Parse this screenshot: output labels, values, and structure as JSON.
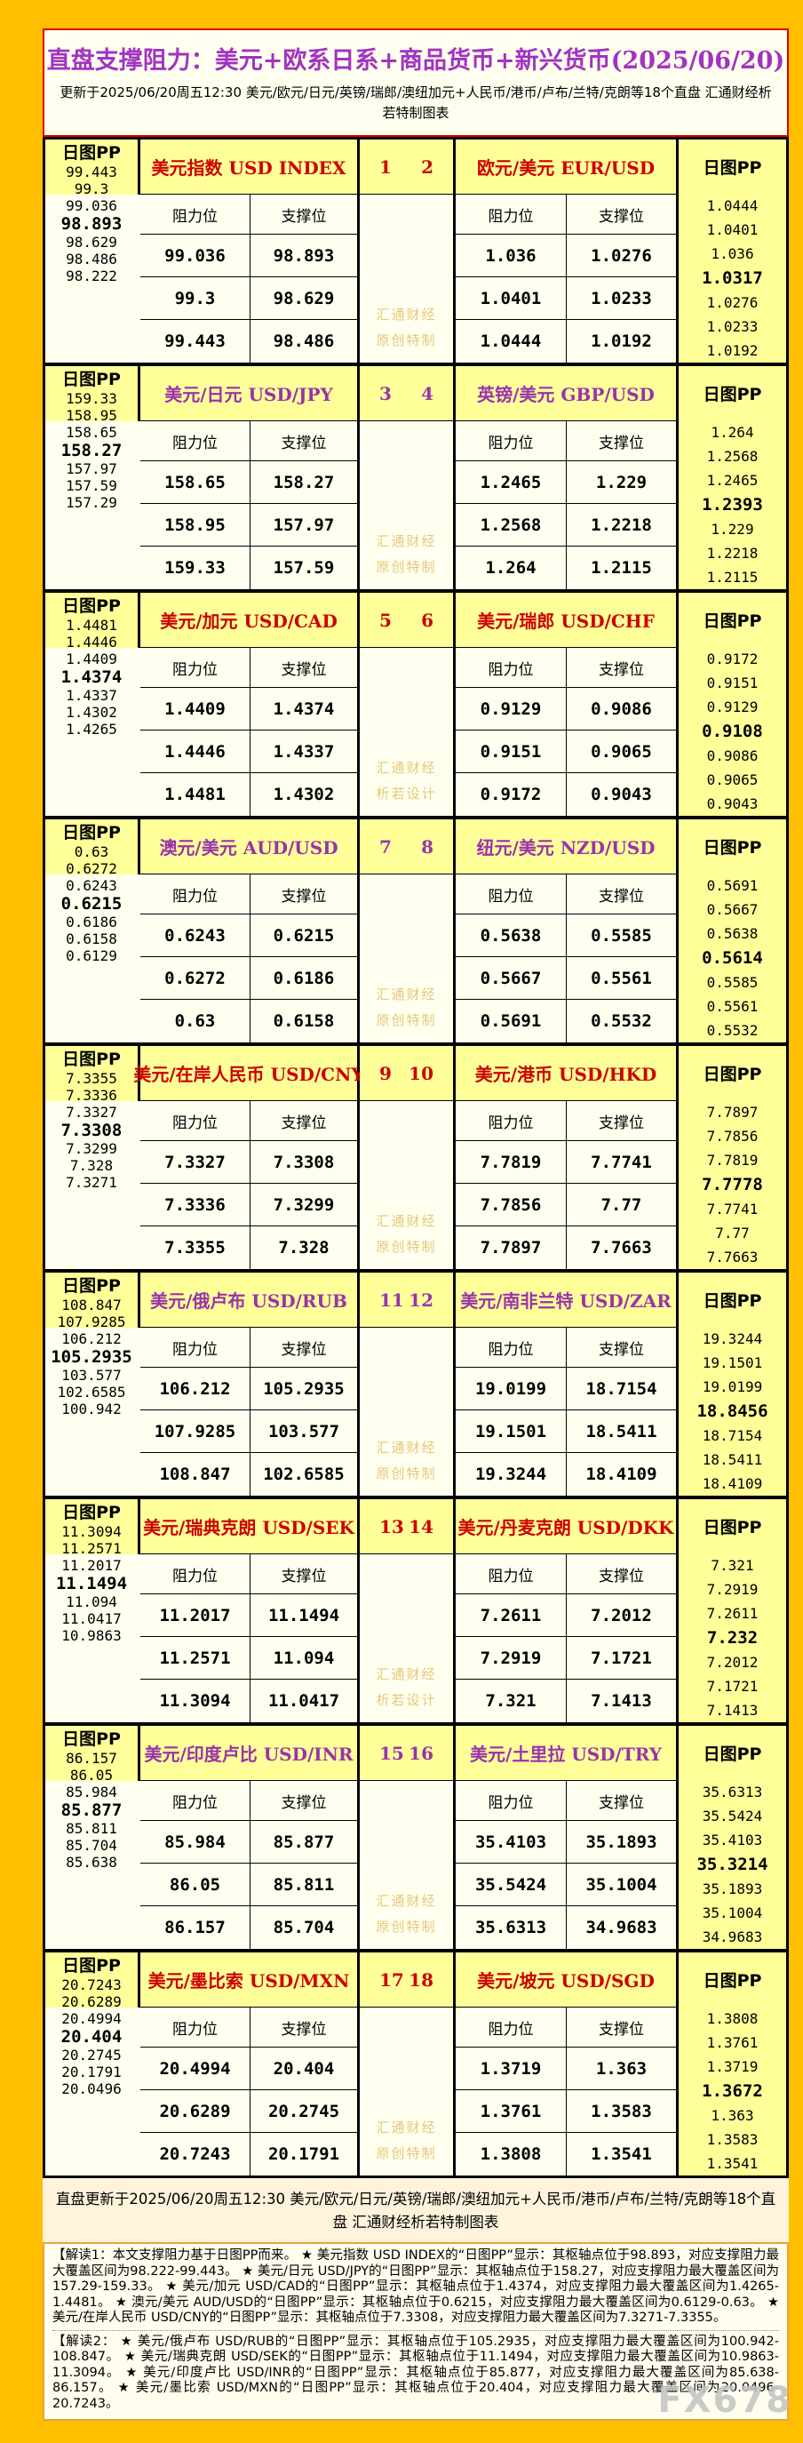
{
  "header": {
    "title": "直盘支撑阻力：美元+欧系日系+商品货币+新兴货币(2025/06/20)",
    "subtitle": "更新于2025/06/20周五12:30 美元/欧元/日元/英镑/瑞郎/澳纽加元+人民币/港币/卢布/兰特/克朗等18个直盘 汇通财经析若特制图表"
  },
  "labels": {
    "pp": "日图PP",
    "resistance": "阻力位",
    "support": "支撑位"
  },
  "colors": {
    "accent_red": "#CC0000",
    "accent_purple": "#9933AA",
    "title_purple": "#A233C2",
    "table_yellow": "#FFFF99",
    "cell_ivory": "#FFFFEF",
    "watermark_gold": "#E5C878",
    "title_border_red": "#E00000",
    "page_gold": "#FFBE00"
  },
  "watermarks": {
    "brand": "汇通财经",
    "fx": "FX678"
  },
  "blocks": [
    {
      "accent": "red",
      "num_left": "1",
      "num_right": "2",
      "wm1": "汇通财经",
      "wm2": "原创特制",
      "left": {
        "pair": "美元指数 USD INDEX",
        "pp": [
          "99.443",
          "99.3",
          "99.036",
          "98.893",
          "98.629",
          "98.486",
          "98.222"
        ],
        "rows": [
          [
            "99.036",
            "98.893"
          ],
          [
            "99.3",
            "98.629"
          ],
          [
            "99.443",
            "98.486"
          ]
        ]
      },
      "right": {
        "pair": "欧元/美元 EUR/USD",
        "pp": [
          "1.0444",
          "1.0401",
          "1.036",
          "1.0317",
          "1.0276",
          "1.0233",
          "1.0192"
        ],
        "rows": [
          [
            "1.036",
            "1.0276"
          ],
          [
            "1.0401",
            "1.0233"
          ],
          [
            "1.0444",
            "1.0192"
          ]
        ]
      }
    },
    {
      "accent": "purple",
      "num_left": "3",
      "num_right": "4",
      "wm1": "汇通财经",
      "wm2": "原创特制",
      "left": {
        "pair": "美元/日元 USD/JPY",
        "pp": [
          "159.33",
          "158.95",
          "158.65",
          "158.27",
          "157.97",
          "157.59",
          "157.29"
        ],
        "rows": [
          [
            "158.65",
            "158.27"
          ],
          [
            "158.95",
            "157.97"
          ],
          [
            "159.33",
            "157.59"
          ]
        ]
      },
      "right": {
        "pair": "英镑/美元 GBP/USD",
        "pp": [
          "1.264",
          "1.2568",
          "1.2465",
          "1.2393",
          "1.229",
          "1.2218",
          "1.2115"
        ],
        "rows": [
          [
            "1.2465",
            "1.229"
          ],
          [
            "1.2568",
            "1.2218"
          ],
          [
            "1.264",
            "1.2115"
          ]
        ]
      }
    },
    {
      "accent": "red",
      "num_left": "5",
      "num_right": "6",
      "wm1": "汇通财经",
      "wm2": "析若设计",
      "left": {
        "pair": "美元/加元 USD/CAD",
        "pp": [
          "1.4481",
          "1.4446",
          "1.4409",
          "1.4374",
          "1.4337",
          "1.4302",
          "1.4265"
        ],
        "rows": [
          [
            "1.4409",
            "1.4374"
          ],
          [
            "1.4446",
            "1.4337"
          ],
          [
            "1.4481",
            "1.4302"
          ]
        ]
      },
      "right": {
        "pair": "美元/瑞郎 USD/CHF",
        "pp": [
          "0.9172",
          "0.9151",
          "0.9129",
          "0.9108",
          "0.9086",
          "0.9065",
          "0.9043"
        ],
        "rows": [
          [
            "0.9129",
            "0.9086"
          ],
          [
            "0.9151",
            "0.9065"
          ],
          [
            "0.9172",
            "0.9043"
          ]
        ]
      }
    },
    {
      "accent": "purple",
      "num_left": "7",
      "num_right": "8",
      "wm1": "汇通财经",
      "wm2": "原创特制",
      "left": {
        "pair": "澳元/美元 AUD/USD",
        "pp": [
          "0.63",
          "0.6272",
          "0.6243",
          "0.6215",
          "0.6186",
          "0.6158",
          "0.6129"
        ],
        "rows": [
          [
            "0.6243",
            "0.6215"
          ],
          [
            "0.6272",
            "0.6186"
          ],
          [
            "0.63",
            "0.6158"
          ]
        ]
      },
      "right": {
        "pair": "纽元/美元 NZD/USD",
        "pp": [
          "0.5691",
          "0.5667",
          "0.5638",
          "0.5614",
          "0.5585",
          "0.5561",
          "0.5532"
        ],
        "rows": [
          [
            "0.5638",
            "0.5585"
          ],
          [
            "0.5667",
            "0.5561"
          ],
          [
            "0.5691",
            "0.5532"
          ]
        ]
      }
    },
    {
      "accent": "red",
      "num_left": "9",
      "num_right": "10",
      "wm1": "汇通财经",
      "wm2": "原创特制",
      "left": {
        "pair": "美元/在岸人民币 USD/CNY",
        "pp": [
          "7.3355",
          "7.3336",
          "7.3327",
          "7.3308",
          "7.3299",
          "7.328",
          "7.3271"
        ],
        "rows": [
          [
            "7.3327",
            "7.3308"
          ],
          [
            "7.3336",
            "7.3299"
          ],
          [
            "7.3355",
            "7.328"
          ]
        ]
      },
      "right": {
        "pair": "美元/港币 USD/HKD",
        "pp": [
          "7.7897",
          "7.7856",
          "7.7819",
          "7.7778",
          "7.7741",
          "7.77",
          "7.7663"
        ],
        "rows": [
          [
            "7.7819",
            "7.7741"
          ],
          [
            "7.7856",
            "7.77"
          ],
          [
            "7.7897",
            "7.7663"
          ]
        ]
      }
    },
    {
      "accent": "purple",
      "num_left": "11",
      "num_right": "12",
      "wm1": "汇通财经",
      "wm2": "原创特制",
      "left": {
        "pair": "美元/俄卢布 USD/RUB",
        "pp": [
          "108.847",
          "107.9285",
          "106.212",
          "105.2935",
          "103.577",
          "102.6585",
          "100.942"
        ],
        "rows": [
          [
            "106.212",
            "105.2935"
          ],
          [
            "107.9285",
            "103.577"
          ],
          [
            "108.847",
            "102.6585"
          ]
        ]
      },
      "right": {
        "pair": "美元/南非兰特 USD/ZAR",
        "pp": [
          "19.3244",
          "19.1501",
          "19.0199",
          "18.8456",
          "18.7154",
          "18.5411",
          "18.4109"
        ],
        "rows": [
          [
            "19.0199",
            "18.7154"
          ],
          [
            "19.1501",
            "18.5411"
          ],
          [
            "19.3244",
            "18.4109"
          ]
        ]
      }
    },
    {
      "accent": "red",
      "num_left": "13",
      "num_right": "14",
      "wm1": "汇通财经",
      "wm2": "析若设计",
      "left": {
        "pair": "美元/瑞典克朗 USD/SEK",
        "pp": [
          "11.3094",
          "11.2571",
          "11.2017",
          "11.1494",
          "11.094",
          "11.0417",
          "10.9863"
        ],
        "rows": [
          [
            "11.2017",
            "11.1494"
          ],
          [
            "11.2571",
            "11.094"
          ],
          [
            "11.3094",
            "11.0417"
          ]
        ]
      },
      "right": {
        "pair": "美元/丹麦克朗 USD/DKK",
        "pp": [
          "7.321",
          "7.2919",
          "7.2611",
          "7.232",
          "7.2012",
          "7.1721",
          "7.1413"
        ],
        "rows": [
          [
            "7.2611",
            "7.2012"
          ],
          [
            "7.2919",
            "7.1721"
          ],
          [
            "7.321",
            "7.1413"
          ]
        ]
      }
    },
    {
      "accent": "purple",
      "num_left": "15",
      "num_right": "16",
      "wm1": "汇通财经",
      "wm2": "原创特制",
      "left": {
        "pair": "美元/印度卢比 USD/INR",
        "pp": [
          "86.157",
          "86.05",
          "85.984",
          "85.877",
          "85.811",
          "85.704",
          "85.638"
        ],
        "rows": [
          [
            "85.984",
            "85.877"
          ],
          [
            "86.05",
            "85.811"
          ],
          [
            "86.157",
            "85.704"
          ]
        ]
      },
      "right": {
        "pair": "美元/土里拉 USD/TRY",
        "pp": [
          "35.6313",
          "35.5424",
          "35.4103",
          "35.3214",
          "35.1893",
          "35.1004",
          "34.9683"
        ],
        "rows": [
          [
            "35.4103",
            "35.1893"
          ],
          [
            "35.5424",
            "35.1004"
          ],
          [
            "35.6313",
            "34.9683"
          ]
        ]
      }
    },
    {
      "accent": "red",
      "num_left": "17",
      "num_right": "18",
      "wm1": "汇通财经",
      "wm2": "原创特制",
      "left": {
        "pair": "美元/墨比索 USD/MXN",
        "pp": [
          "20.7243",
          "20.6289",
          "20.4994",
          "20.404",
          "20.2745",
          "20.1791",
          "20.0496"
        ],
        "rows": [
          [
            "20.4994",
            "20.404"
          ],
          [
            "20.6289",
            "20.2745"
          ],
          [
            "20.7243",
            "20.1791"
          ]
        ]
      },
      "right": {
        "pair": "美元/坡元 USD/SGD",
        "pp": [
          "1.3808",
          "1.3761",
          "1.3719",
          "1.3672",
          "1.363",
          "1.3583",
          "1.3541"
        ],
        "rows": [
          [
            "1.3719",
            "1.363"
          ],
          [
            "1.3761",
            "1.3583"
          ],
          [
            "1.3808",
            "1.3541"
          ]
        ]
      }
    }
  ],
  "footer": {
    "update_line": "直盘更新于2025/06/20周五12:30 美元/欧元/日元/英镑/瑞郎/澳纽加元+人民币/港币/卢布/兰特/克朗等18个直盘 汇通财经析若特制图表",
    "note1": "【解读1：本文支撑阻力基于日图PP而来。 ★ 美元指数 USD INDEX的“日图PP”显示：其枢轴点位于98.893，对应支撑阻力最大覆盖区间为98.222-99.443。 ★ 美元/日元 USD/JPY的“日图PP”显示：其枢轴点位于158.27，对应支撑阻力最大覆盖区间为157.29-159.33。 ★ 美元/加元 USD/CAD的“日图PP”显示：其枢轴点位于1.4374，对应支撑阻力最大覆盖区间为1.4265-1.4481。 ★ 澳元/美元 AUD/USD的“日图PP”显示：其枢轴点位于0.6215，对应支撑阻力最大覆盖区间为0.6129-0.63。 ★ 美元/在岸人民币 USD/CNY的“日图PP”显示：其枢轴点位于7.3308，对应支撑阻力最大覆盖区间为7.3271-7.3355。",
    "note2": "【解读2： ★ 美元/俄卢布 USD/RUB的“日图PP”显示：其枢轴点位于105.2935，对应支撑阻力最大覆盖区间为100.942-108.847。 ★ 美元/瑞典克朗 USD/SEK的“日图PP”显示：其枢轴点位于11.1494，对应支撑阻力最大覆盖区间为10.9863-11.3094。 ★ 美元/印度卢比 USD/INR的“日图PP”显示：其枢轴点位于85.877，对应支撑阻力最大覆盖区间为85.638-86.157。 ★ 美元/墨比索 USD/MXN的“日图PP”显示：其枢轴点位于20.404，对应支撑阻力最大覆盖区间为20.0496-20.7243。"
  }
}
